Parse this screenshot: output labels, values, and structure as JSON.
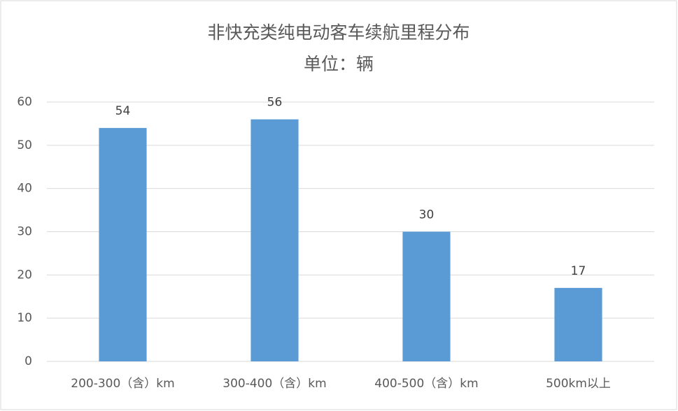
{
  "chart_data": {
    "type": "bar",
    "title": "非快充类纯电动客车续航里程分布",
    "subtitle": "单位：辆",
    "categories": [
      "200-300（含）km",
      "300-400（含）km",
      "400-500（含）km",
      "500km以上"
    ],
    "values": [
      54,
      56,
      30,
      17
    ],
    "color": "#5b9bd5",
    "ylim": [
      0,
      60
    ],
    "yticks": [
      0,
      10,
      20,
      30,
      40,
      50,
      60
    ],
    "grid": true
  }
}
